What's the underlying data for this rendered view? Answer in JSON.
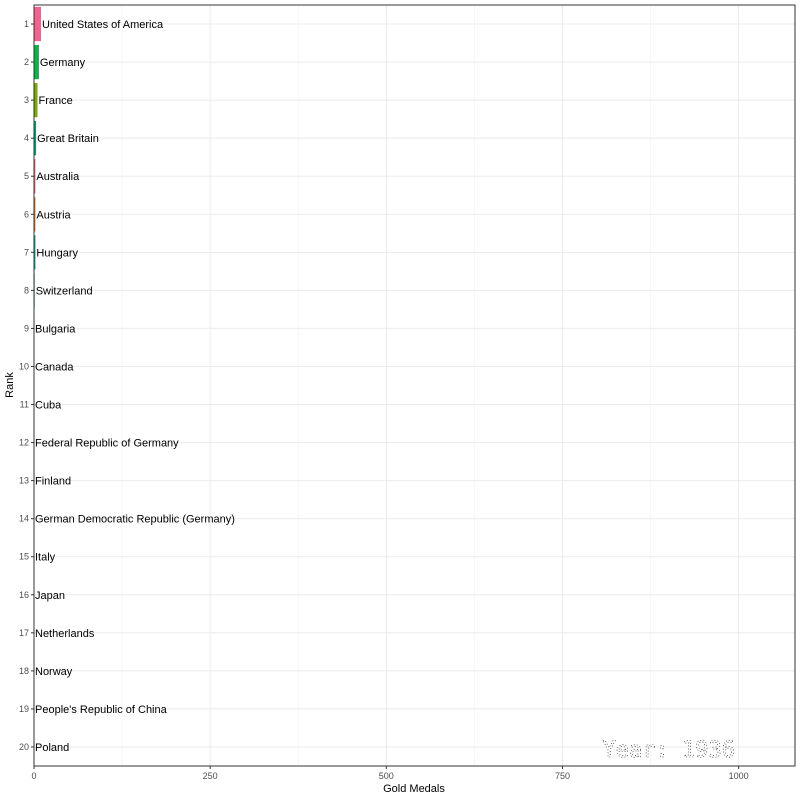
{
  "chart_data": {
    "type": "bar",
    "orientation": "horizontal",
    "title": "",
    "xlabel": "Gold Medals",
    "ylabel": "Rank",
    "xlim": [
      0,
      1080
    ],
    "xticks": [
      0,
      250,
      500,
      750,
      1000
    ],
    "grid": true,
    "legend": "none",
    "annotation": "Year: 1936",
    "bars": [
      {
        "rank": 1,
        "country": "United States of America",
        "value": 10,
        "color": "#f0638e"
      },
      {
        "rank": 2,
        "country": "Germany",
        "value": 7,
        "color": "#12b04b"
      },
      {
        "rank": 3,
        "country": "France",
        "value": 5,
        "color": "#7caa00"
      },
      {
        "rank": 4,
        "country": "Great Britain",
        "value": 3,
        "color": "#00a077"
      },
      {
        "rank": 5,
        "country": "Australia",
        "value": 2,
        "color": "#e86b6b"
      },
      {
        "rank": 6,
        "country": "Austria",
        "value": 2,
        "color": "#d6732a"
      },
      {
        "rank": 7,
        "country": "Hungary",
        "value": 2,
        "color": "#00a08a"
      },
      {
        "rank": 8,
        "country": "Switzerland",
        "value": 1,
        "color": "#00a9c0"
      },
      {
        "rank": 9,
        "country": "Bulgaria",
        "value": 0,
        "color": "#999999"
      },
      {
        "rank": 10,
        "country": "Canada",
        "value": 0,
        "color": "#999999"
      },
      {
        "rank": 11,
        "country": "Cuba",
        "value": 0,
        "color": "#999999"
      },
      {
        "rank": 12,
        "country": "Federal Republic of Germany",
        "value": 0,
        "color": "#999999"
      },
      {
        "rank": 13,
        "country": "Finland",
        "value": 0,
        "color": "#999999"
      },
      {
        "rank": 14,
        "country": "German Democratic Republic (Germany)",
        "value": 0,
        "color": "#999999"
      },
      {
        "rank": 15,
        "country": "Italy",
        "value": 0,
        "color": "#999999"
      },
      {
        "rank": 16,
        "country": "Japan",
        "value": 0,
        "color": "#999999"
      },
      {
        "rank": 17,
        "country": "Netherlands",
        "value": 0,
        "color": "#999999"
      },
      {
        "rank": 18,
        "country": "Norway",
        "value": 0,
        "color": "#999999"
      },
      {
        "rank": 19,
        "country": "People's Republic of China",
        "value": 0,
        "color": "#999999"
      },
      {
        "rank": 20,
        "country": "Poland",
        "value": 0,
        "color": "#999999"
      }
    ]
  }
}
